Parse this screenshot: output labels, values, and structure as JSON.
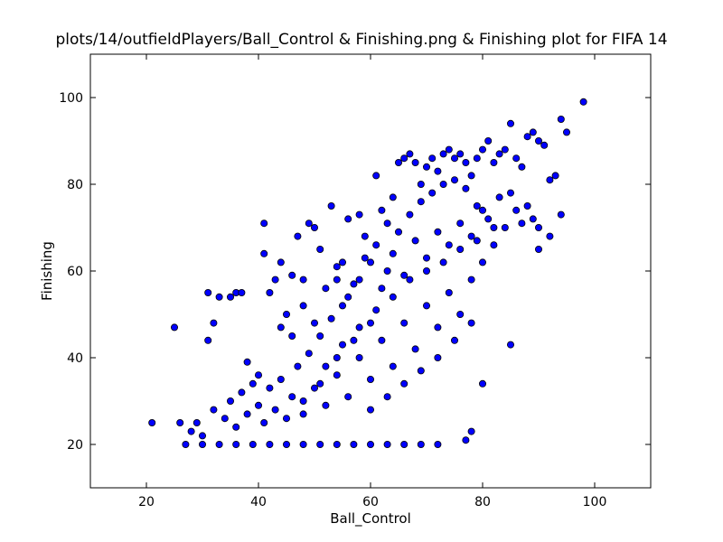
{
  "chart_data": {
    "type": "scatter",
    "title": "plots/14/outfieldPlayers/Ball_Control & Finishing.png & Finishing plot for FIFA 14",
    "xlabel": "Ball_Control",
    "ylabel": "Finishing",
    "xlim": [
      10,
      110
    ],
    "ylim": [
      10,
      110
    ],
    "xticks": [
      20,
      40,
      60,
      80,
      100
    ],
    "yticks": [
      20,
      40,
      60,
      80,
      100
    ],
    "grid": false,
    "marker_color": "#0000ff",
    "marker_edge": "#000000",
    "series": [
      {
        "points": [
          [
            21,
            25
          ],
          [
            25,
            47
          ],
          [
            31,
            55
          ],
          [
            31,
            44
          ],
          [
            32,
            48
          ],
          [
            33,
            54
          ],
          [
            35,
            54
          ],
          [
            36,
            55
          ],
          [
            37,
            55
          ],
          [
            38,
            39
          ],
          [
            39,
            34
          ],
          [
            40,
            36
          ],
          [
            41,
            71
          ],
          [
            41,
            64
          ],
          [
            42,
            55
          ],
          [
            43,
            58
          ],
          [
            44,
            62
          ],
          [
            44,
            47
          ],
          [
            45,
            50
          ],
          [
            46,
            59
          ],
          [
            47,
            68
          ],
          [
            48,
            58
          ],
          [
            49,
            71
          ],
          [
            50,
            70
          ],
          [
            51,
            65
          ],
          [
            53,
            75
          ],
          [
            54,
            58
          ],
          [
            55,
            62
          ],
          [
            56,
            72
          ],
          [
            58,
            73
          ],
          [
            59,
            68
          ],
          [
            61,
            82
          ],
          [
            62,
            74
          ],
          [
            63,
            71
          ],
          [
            64,
            77
          ],
          [
            65,
            85
          ],
          [
            66,
            86
          ],
          [
            67,
            87
          ],
          [
            68,
            85
          ],
          [
            69,
            80
          ],
          [
            70,
            84
          ],
          [
            71,
            86
          ],
          [
            72,
            83
          ],
          [
            73,
            87
          ],
          [
            74,
            88
          ],
          [
            75,
            86
          ],
          [
            76,
            87
          ],
          [
            77,
            85
          ],
          [
            78,
            82
          ],
          [
            79,
            86
          ],
          [
            80,
            88
          ],
          [
            81,
            90
          ],
          [
            82,
            85
          ],
          [
            83,
            87
          ],
          [
            84,
            88
          ],
          [
            85,
            94
          ],
          [
            86,
            86
          ],
          [
            87,
            84
          ],
          [
            88,
            91
          ],
          [
            89,
            92
          ],
          [
            90,
            90
          ],
          [
            91,
            89
          ],
          [
            92,
            81
          ],
          [
            93,
            82
          ],
          [
            94,
            95
          ],
          [
            95,
            92
          ],
          [
            98,
            99
          ],
          [
            94,
            73
          ],
          [
            92,
            68
          ],
          [
            90,
            65
          ],
          [
            85,
            43
          ],
          [
            80,
            34
          ],
          [
            78,
            23
          ],
          [
            77,
            21
          ],
          [
            72,
            20
          ],
          [
            69,
            20
          ],
          [
            66,
            20
          ],
          [
            63,
            20
          ],
          [
            60,
            20
          ],
          [
            57,
            20
          ],
          [
            54,
            20
          ],
          [
            51,
            20
          ],
          [
            48,
            20
          ],
          [
            45,
            20
          ],
          [
            42,
            20
          ],
          [
            39,
            20
          ],
          [
            36,
            20
          ],
          [
            33,
            20
          ],
          [
            30,
            20
          ],
          [
            27,
            20
          ],
          [
            26,
            25
          ],
          [
            28,
            23
          ],
          [
            29,
            25
          ],
          [
            30,
            22
          ],
          [
            32,
            28
          ],
          [
            34,
            26
          ],
          [
            35,
            30
          ],
          [
            36,
            24
          ],
          [
            37,
            32
          ],
          [
            38,
            27
          ],
          [
            40,
            29
          ],
          [
            41,
            25
          ],
          [
            42,
            33
          ],
          [
            43,
            28
          ],
          [
            44,
            35
          ],
          [
            46,
            31
          ],
          [
            47,
            38
          ],
          [
            48,
            27
          ],
          [
            49,
            41
          ],
          [
            50,
            33
          ],
          [
            51,
            45
          ],
          [
            52,
            29
          ],
          [
            53,
            49
          ],
          [
            54,
            36
          ],
          [
            55,
            52
          ],
          [
            56,
            31
          ],
          [
            57,
            57
          ],
          [
            58,
            40
          ],
          [
            59,
            63
          ],
          [
            60,
            35
          ],
          [
            61,
            66
          ],
          [
            62,
            44
          ],
          [
            63,
            60
          ],
          [
            64,
            38
          ],
          [
            65,
            69
          ],
          [
            66,
            48
          ],
          [
            67,
            73
          ],
          [
            68,
            42
          ],
          [
            69,
            76
          ],
          [
            70,
            52
          ],
          [
            71,
            78
          ],
          [
            72,
            47
          ],
          [
            73,
            80
          ],
          [
            74,
            55
          ],
          [
            75,
            81
          ],
          [
            76,
            50
          ],
          [
            77,
            79
          ],
          [
            78,
            58
          ],
          [
            79,
            75
          ],
          [
            80,
            62
          ],
          [
            81,
            72
          ],
          [
            82,
            66
          ],
          [
            83,
            77
          ],
          [
            84,
            70
          ],
          [
            85,
            78
          ],
          [
            86,
            74
          ],
          [
            87,
            71
          ],
          [
            88,
            75
          ],
          [
            89,
            72
          ],
          [
            90,
            70
          ],
          [
            46,
            45
          ],
          [
            48,
            52
          ],
          [
            50,
            48
          ],
          [
            52,
            56
          ],
          [
            54,
            61
          ],
          [
            56,
            54
          ],
          [
            58,
            58
          ],
          [
            60,
            62
          ],
          [
            62,
            56
          ],
          [
            64,
            64
          ],
          [
            66,
            59
          ],
          [
            68,
            67
          ],
          [
            70,
            63
          ],
          [
            72,
            69
          ],
          [
            74,
            66
          ],
          [
            76,
            71
          ],
          [
            78,
            68
          ],
          [
            80,
            74
          ],
          [
            52,
            38
          ],
          [
            55,
            43
          ],
          [
            58,
            47
          ],
          [
            61,
            51
          ],
          [
            64,
            54
          ],
          [
            67,
            58
          ],
          [
            70,
            60
          ],
          [
            73,
            62
          ],
          [
            76,
            65
          ],
          [
            79,
            67
          ],
          [
            82,
            70
          ],
          [
            60,
            28
          ],
          [
            63,
            31
          ],
          [
            66,
            34
          ],
          [
            69,
            37
          ],
          [
            72,
            40
          ],
          [
            75,
            44
          ],
          [
            78,
            48
          ],
          [
            45,
            26
          ],
          [
            48,
            30
          ],
          [
            51,
            34
          ],
          [
            54,
            40
          ],
          [
            57,
            44
          ],
          [
            60,
            48
          ]
        ]
      }
    ]
  }
}
